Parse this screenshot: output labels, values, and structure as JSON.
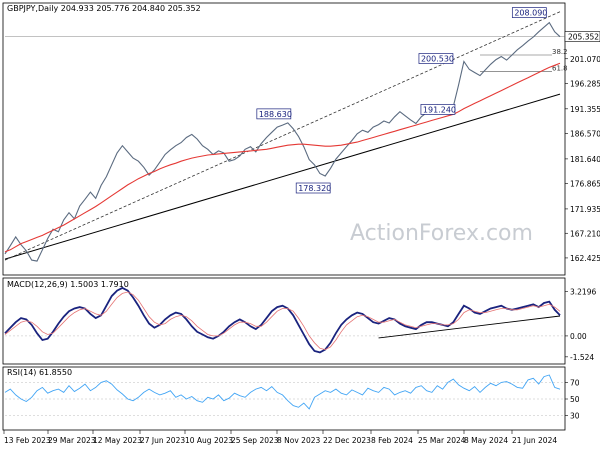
{
  "chart_data": {
    "type": "line",
    "symbol_header": "GBPJPY,Daily  204.933 205.776 204.840 205.352",
    "watermark": "ActionForex.com",
    "x_tick_labels": [
      "13 Feb 2023",
      "29 Mar 2023",
      "12 May 2023",
      "27 Jun 2023",
      "10 Aug 2023",
      "25 Sep 2023",
      "8 Nov 2023",
      "22 Dec 2023",
      "8 Feb 2024",
      "25 Mar 2024",
      "8 May 2024",
      "21 Jun 2024"
    ],
    "price_panel": {
      "y_ticks": [
        "201.070",
        "196.285",
        "191.355",
        "186.570",
        "181.640",
        "176.865",
        "171.935",
        "167.210",
        "162.425"
      ],
      "y_tick_values": [
        201.07,
        196.285,
        191.355,
        186.57,
        181.64,
        176.865,
        171.935,
        167.21,
        162.425
      ],
      "ylim": [
        159.5,
        211.5
      ],
      "last_price": "205.352",
      "last_price_value": 205.352,
      "series": [
        {
          "name": "GBPJPY",
          "values": [
            163.2,
            164.8,
            166.5,
            165.0,
            163.8,
            162.0,
            161.8,
            164.0,
            166.2,
            168.0,
            167.5,
            169.8,
            171.2,
            170.0,
            172.5,
            173.8,
            175.2,
            174.0,
            176.5,
            178.2,
            180.5,
            182.8,
            184.2,
            183.0,
            181.8,
            181.2,
            180.0,
            178.5,
            179.5,
            181.0,
            182.5,
            183.4,
            184.2,
            184.8,
            185.8,
            186.4,
            185.5,
            184.2,
            183.5,
            182.5,
            183.2,
            182.8,
            181.2,
            181.5,
            182.2,
            183.5,
            184.0,
            183.0,
            184.6,
            185.8,
            186.8,
            187.8,
            188.2,
            188.63,
            187.5,
            186.0,
            184.0,
            181.5,
            180.5,
            178.8,
            178.32,
            179.8,
            181.6,
            182.8,
            184.0,
            185.2,
            186.5,
            187.2,
            186.8,
            187.8,
            188.3,
            189.0,
            188.6,
            189.8,
            190.8,
            190.0,
            189.2,
            188.5,
            189.8,
            190.6,
            191.3,
            192.2,
            191.6,
            191.24,
            191.8,
            196.0,
            200.53,
            199.0,
            198.4,
            197.8,
            198.9,
            200.0,
            200.9,
            201.5,
            200.8,
            201.8,
            202.8,
            203.6,
            204.5,
            205.3,
            206.3,
            207.2,
            208.09,
            206.3,
            205.352
          ]
        },
        {
          "name": "SMA",
          "values": [
            163.6,
            164.0,
            164.6,
            165.2,
            165.6,
            166.0,
            166.4,
            166.8,
            167.3,
            167.8,
            168.3,
            168.8,
            169.4,
            170.0,
            170.6,
            171.2,
            171.8,
            172.4,
            173.1,
            173.8,
            174.5,
            175.2,
            175.9,
            176.6,
            177.2,
            177.8,
            178.3,
            178.8,
            179.2,
            179.7,
            180.1,
            180.5,
            180.8,
            181.2,
            181.5,
            181.8,
            182.0,
            182.2,
            182.4,
            182.5,
            182.6,
            182.7,
            182.8,
            182.9,
            183.0,
            183.1,
            183.2,
            183.3,
            183.4,
            183.5,
            183.7,
            183.9,
            184.1,
            184.3,
            184.4,
            184.5,
            184.5,
            184.4,
            184.3,
            184.2,
            184.1,
            184.1,
            184.2,
            184.3,
            184.5,
            184.7,
            184.9,
            185.2,
            185.5,
            185.8,
            186.1,
            186.4,
            186.7,
            187.0,
            187.3,
            187.6,
            187.9,
            188.2,
            188.5,
            188.8,
            189.1,
            189.4,
            189.7,
            190.0,
            190.3,
            190.8,
            191.4,
            191.9,
            192.4,
            192.9,
            193.4,
            193.9,
            194.4,
            194.9,
            195.4,
            195.9,
            196.4,
            196.9,
            197.4,
            197.9,
            198.4,
            198.9,
            199.4,
            199.8,
            200.2
          ]
        }
      ],
      "trendline": {
        "from": [
          0,
          162.2
        ],
        "to": [
          104,
          194.2
        ]
      },
      "dashed_channel": {
        "from": [
          0,
          162.0
        ],
        "to": [
          104,
          210.2
        ]
      },
      "annotations": [
        {
          "label": "188.630",
          "index": 53,
          "value": 188.63
        },
        {
          "label": "178.320",
          "index": 60,
          "value": 178.32
        },
        {
          "label": "200.530",
          "index": 86,
          "value": 200.53
        },
        {
          "label": "191.240",
          "index": 83,
          "value": 191.24
        },
        {
          "label": "208.090",
          "index": 102,
          "value": 208.09
        }
      ],
      "fib_levels": [
        {
          "label": "38.2",
          "value": 201.8
        },
        {
          "label": "61.8",
          "value": 198.6
        }
      ]
    },
    "macd_panel": {
      "label": "MACD(12,26,9) 1.5003 1.7910",
      "y_ticks": [
        "3.2196",
        "0.00",
        "-1.524"
      ],
      "y_tick_values": [
        3.2196,
        0,
        -1.524
      ],
      "ylim": [
        -1.9,
        4.0
      ],
      "series": [
        {
          "name": "MACD",
          "values": [
            0.2,
            0.6,
            1.0,
            1.3,
            1.2,
            0.8,
            0.2,
            -0.3,
            -0.2,
            0.3,
            0.9,
            1.4,
            1.8,
            2.0,
            2.1,
            2.0,
            1.6,
            1.3,
            1.5,
            2.2,
            2.9,
            3.3,
            3.5,
            3.3,
            2.8,
            2.2,
            1.5,
            0.9,
            0.6,
            0.8,
            1.2,
            1.5,
            1.7,
            1.6,
            1.2,
            0.7,
            0.3,
            0.1,
            -0.1,
            -0.2,
            0.0,
            0.3,
            0.7,
            1.0,
            1.2,
            1.0,
            0.7,
            0.5,
            0.8,
            1.3,
            1.8,
            2.1,
            2.2,
            2.0,
            1.5,
            0.8,
            0.1,
            -0.6,
            -1.1,
            -1.2,
            -1.0,
            -0.5,
            0.2,
            0.8,
            1.2,
            1.5,
            1.7,
            1.6,
            1.3,
            1.0,
            0.9,
            1.1,
            1.3,
            1.2,
            0.9,
            0.7,
            0.6,
            0.5,
            0.8,
            1.0,
            1.0,
            0.9,
            0.8,
            0.7,
            1.0,
            1.6,
            2.2,
            2.0,
            1.7,
            1.6,
            1.8,
            2.0,
            2.1,
            2.2,
            2.0,
            1.9,
            2.0,
            2.1,
            2.2,
            2.3,
            2.1,
            2.4,
            2.5,
            1.9,
            1.5003
          ]
        },
        {
          "name": "Signal",
          "values": [
            0.1,
            0.4,
            0.7,
            1.0,
            1.1,
            1.0,
            0.7,
            0.3,
            0.1,
            0.2,
            0.6,
            1.0,
            1.4,
            1.7,
            1.9,
            2.0,
            1.8,
            1.6,
            1.5,
            1.8,
            2.3,
            2.8,
            3.1,
            3.2,
            3.0,
            2.6,
            2.0,
            1.4,
            1.0,
            0.8,
            0.9,
            1.2,
            1.4,
            1.5,
            1.4,
            1.1,
            0.7,
            0.4,
            0.1,
            0.0,
            0.0,
            0.2,
            0.5,
            0.8,
            1.0,
            1.0,
            0.9,
            0.7,
            0.7,
            1.0,
            1.4,
            1.8,
            2.0,
            2.0,
            1.8,
            1.3,
            0.7,
            0.0,
            -0.5,
            -0.9,
            -1.0,
            -0.8,
            -0.3,
            0.3,
            0.8,
            1.1,
            1.4,
            1.5,
            1.4,
            1.2,
            1.0,
            1.0,
            1.1,
            1.2,
            1.0,
            0.8,
            0.7,
            0.6,
            0.7,
            0.8,
            0.9,
            0.9,
            0.8,
            0.8,
            0.9,
            1.2,
            1.7,
            1.9,
            1.8,
            1.7,
            1.7,
            1.8,
            1.9,
            2.0,
            2.0,
            1.9,
            1.9,
            2.0,
            2.1,
            2.2,
            2.1,
            2.2,
            2.3,
            2.1,
            1.791
          ]
        }
      ],
      "trendline": {
        "from": [
          70,
          -0.15
        ],
        "to": [
          104,
          1.45
        ]
      }
    },
    "rsi_panel": {
      "label": "RSI(14) 61.8550",
      "y_ticks": [
        "70",
        "50",
        "30"
      ],
      "y_tick_values": [
        70,
        50,
        30
      ],
      "ylim": [
        15,
        85
      ],
      "series": [
        {
          "name": "RSI",
          "values": [
            58,
            62,
            55,
            50,
            47,
            52,
            60,
            64,
            57,
            60,
            62,
            58,
            66,
            59,
            63,
            68,
            60,
            64,
            70,
            72,
            68,
            61,
            56,
            50,
            48,
            52,
            58,
            62,
            58,
            55,
            57,
            60,
            52,
            55,
            50,
            53,
            48,
            46,
            52,
            50,
            55,
            48,
            51,
            57,
            54,
            52,
            58,
            62,
            64,
            60,
            65,
            58,
            55,
            48,
            42,
            40,
            45,
            38,
            52,
            56,
            60,
            58,
            62,
            57,
            55,
            61,
            58,
            55,
            63,
            60,
            58,
            64,
            62,
            55,
            58,
            60,
            57,
            64,
            66,
            60,
            58,
            66,
            62,
            70,
            74,
            67,
            63,
            60,
            65,
            58,
            64,
            69,
            66,
            70,
            71,
            68,
            64,
            63,
            73,
            75,
            68,
            77,
            79,
            64,
            61.855
          ]
        }
      ]
    }
  }
}
